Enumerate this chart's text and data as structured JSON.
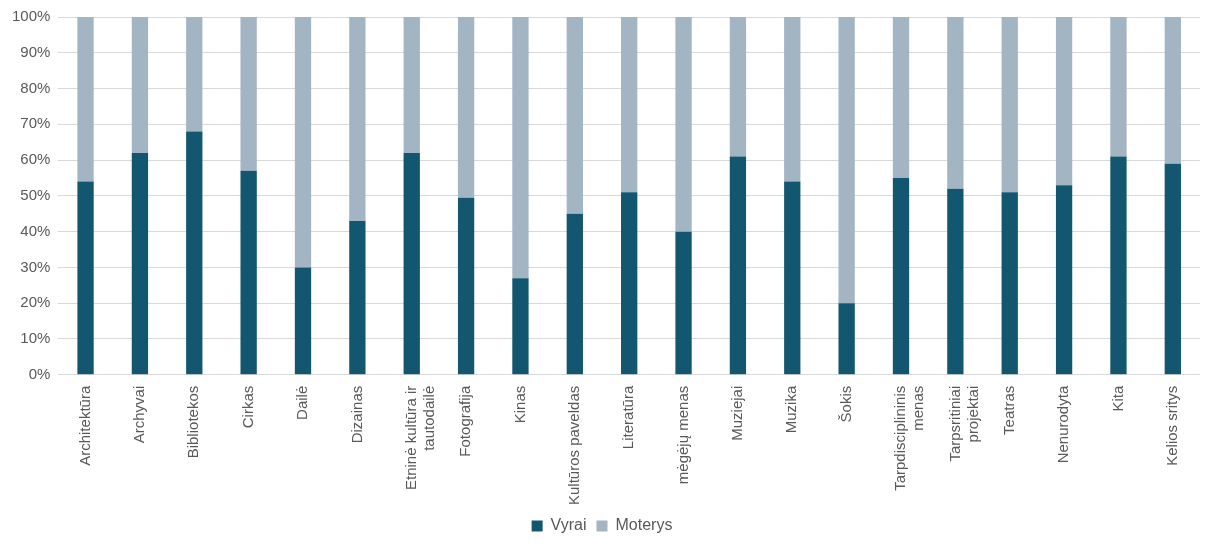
{
  "chart_data": {
    "type": "bar",
    "stacked": true,
    "categories": [
      "Architektūra",
      "Archyvai",
      "Bibliotekos",
      "Cirkas",
      "Dailė",
      "Dizainas",
      "Etninė kultūra ir tautodailė",
      "Fotografija",
      "Kinas",
      "Kultūros paveldas",
      "Literatūra",
      "mėgėjų menas",
      "Muziejai",
      "Muzika",
      "Šokis",
      "Tarpdisciplininis menas",
      "Tarpsritiniai projektai",
      "Teatras",
      "Nenurodyta",
      "Kita",
      "Kelios sritys"
    ],
    "series": [
      {
        "name": "Vyrai",
        "color": "#12566f",
        "values": [
          54,
          62,
          68,
          57,
          30,
          43,
          62,
          49.5,
          27,
          45,
          51,
          40,
          61,
          54,
          20,
          55,
          52,
          51,
          53,
          61,
          59
        ]
      },
      {
        "name": "Moterys",
        "color": "#a3b4c3",
        "values": [
          46,
          38,
          32,
          43,
          70,
          57,
          38,
          50.5,
          73,
          55,
          49,
          60,
          39,
          46,
          80,
          45,
          48,
          49,
          47,
          39,
          41
        ]
      }
    ],
    "ylim": [
      0,
      100
    ],
    "yticks": [
      {
        "value": 0,
        "label": "0%"
      },
      {
        "value": 10,
        "label": "10%"
      },
      {
        "value": 20,
        "label": "20%"
      },
      {
        "value": 30,
        "label": "30%"
      },
      {
        "value": 40,
        "label": "40%"
      },
      {
        "value": 50,
        "label": "50%"
      },
      {
        "value": 60,
        "label": "60%"
      },
      {
        "value": 70,
        "label": "70%"
      },
      {
        "value": 80,
        "label": "80%"
      },
      {
        "value": 90,
        "label": "90%"
      },
      {
        "value": 100,
        "label": "100%"
      }
    ],
    "grid": "y",
    "legend": "bottom"
  }
}
